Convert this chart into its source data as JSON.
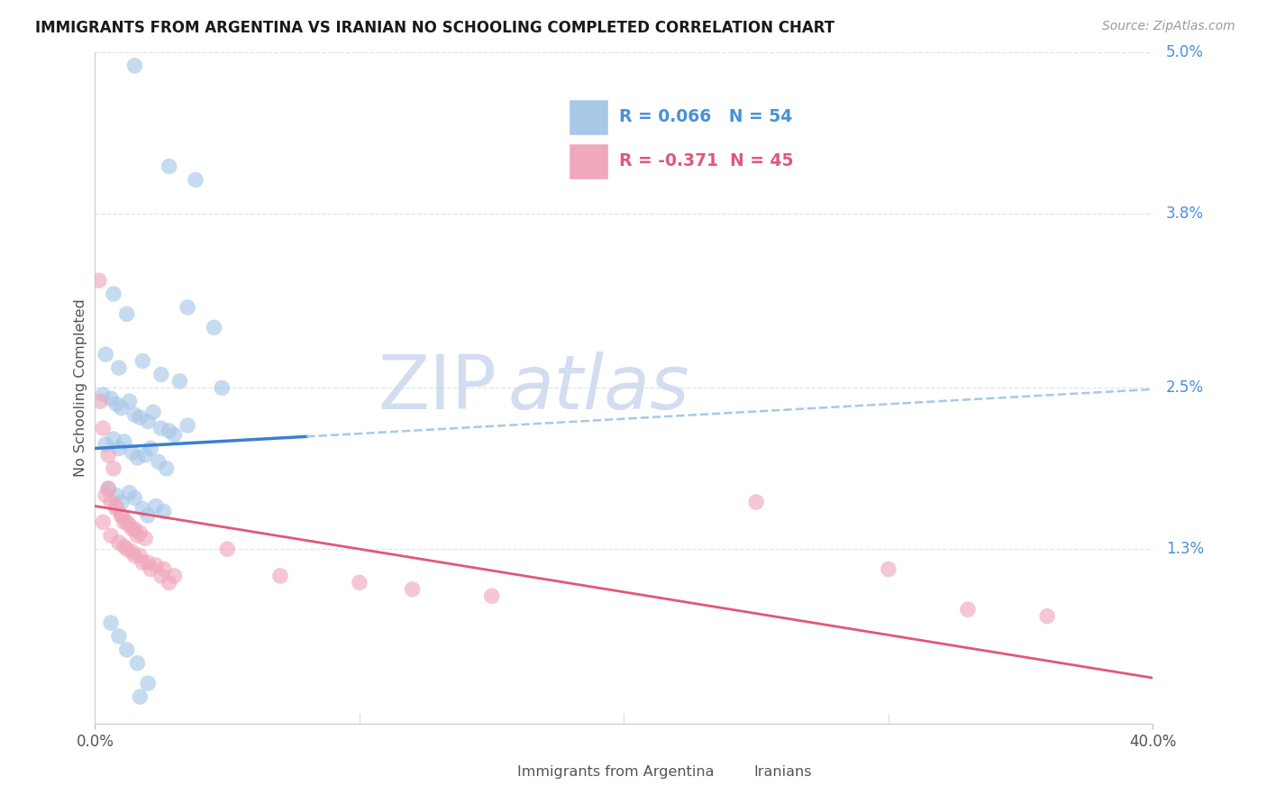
{
  "title": "IMMIGRANTS FROM ARGENTINA VS IRANIAN NO SCHOOLING COMPLETED CORRELATION CHART",
  "source": "Source: ZipAtlas.com",
  "ylabel": "No Schooling Completed",
  "xlim": [
    0.0,
    40.0
  ],
  "ylim": [
    0.0,
    5.0
  ],
  "right_ytick_vals": [
    0.0,
    1.3,
    2.5,
    3.8,
    5.0
  ],
  "right_yticklabels": [
    "",
    "1.3%",
    "2.5%",
    "3.8%",
    "5.0%"
  ],
  "argentina_R": 0.066,
  "argentina_N": 54,
  "iranian_R": -0.371,
  "iranian_N": 45,
  "arg_color": "#a8c8e8",
  "iran_color": "#f0a8bc",
  "reg_arg_solid_color": "#3a7fd5",
  "reg_arg_dashed_color": "#a8c8e8",
  "reg_iran_color": "#e05878",
  "grid_color": "#dde4f0",
  "bg_color": "#ffffff",
  "title_color": "#1a1a1a",
  "source_color": "#999999",
  "right_ytick_color": "#4a90d9",
  "label_color": "#555555",
  "watermark_zip": "ZIP",
  "watermark_atlas": "atlas",
  "watermark_color": "#ccd8ee",
  "legend_border_color": "#cccccc",
  "bottom_legend_labels": [
    "Immigrants from Argentina",
    "Iranians"
  ],
  "arg_reg_intercept": 2.05,
  "arg_reg_slope": 0.011,
  "iran_reg_intercept": 1.62,
  "iran_reg_slope": -0.032,
  "arg_solid_end": 8.0,
  "iran_solid_end": 40.0
}
